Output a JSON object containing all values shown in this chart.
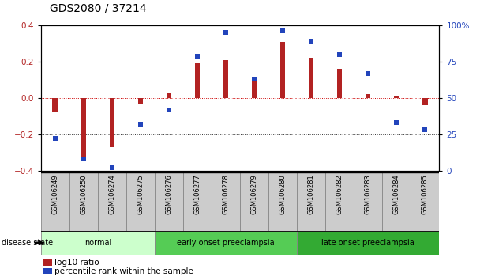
{
  "title": "GDS2080 / 37214",
  "samples": [
    "GSM106249",
    "GSM106250",
    "GSM106274",
    "GSM106275",
    "GSM106276",
    "GSM106277",
    "GSM106278",
    "GSM106279",
    "GSM106280",
    "GSM106281",
    "GSM106282",
    "GSM106283",
    "GSM106284",
    "GSM106285"
  ],
  "log10_ratio": [
    -0.08,
    -0.35,
    -0.27,
    -0.03,
    0.03,
    0.19,
    0.21,
    0.1,
    0.31,
    0.22,
    0.16,
    0.02,
    0.01,
    -0.04
  ],
  "percentile_rank": [
    22,
    8,
    2,
    32,
    42,
    79,
    95,
    63,
    96,
    89,
    80,
    67,
    33,
    28
  ],
  "bar_color": "#b22222",
  "dot_color": "#2244bb",
  "ylim_left": [
    -0.4,
    0.4
  ],
  "ylim_right": [
    0,
    100
  ],
  "yticks_left": [
    -0.4,
    -0.2,
    0.0,
    0.2,
    0.4
  ],
  "yticks_right": [
    0,
    25,
    50,
    75,
    100
  ],
  "ytick_labels_right": [
    "0",
    "25",
    "50",
    "75",
    "100%"
  ],
  "groups": [
    {
      "label": "normal",
      "start": 0,
      "end": 4,
      "color": "#ccffcc"
    },
    {
      "label": "early onset preeclampsia",
      "start": 4,
      "end": 9,
      "color": "#55cc55"
    },
    {
      "label": "late onset preeclampsia",
      "start": 9,
      "end": 14,
      "color": "#33aa33"
    }
  ],
  "disease_state_label": "disease state",
  "legend_items": [
    {
      "label": "log10 ratio",
      "color": "#b22222"
    },
    {
      "label": "percentile rank within the sample",
      "color": "#2244bb"
    }
  ],
  "background_color": "#ffffff",
  "dotted_line_color": "#333333",
  "zero_line_color": "#cc0000",
  "bar_width": 0.18,
  "dot_size": 4.5,
  "tick_label_fontsize": 7.5,
  "sample_box_color": "#cccccc",
  "title_fontsize": 10
}
